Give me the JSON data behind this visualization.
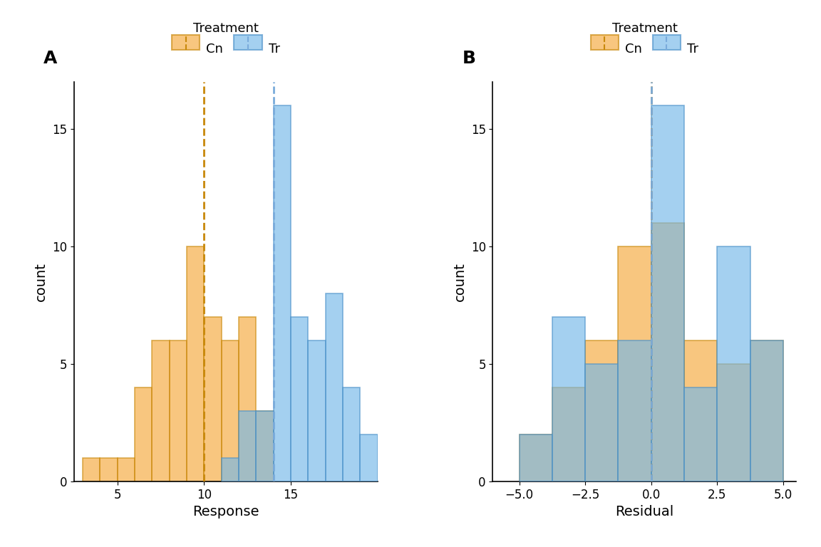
{
  "panel_A": {
    "cn_bin_edges": [
      3,
      4,
      5,
      6,
      7,
      8,
      9,
      10,
      11,
      12,
      13,
      14
    ],
    "cn_counts": [
      1,
      1,
      1,
      4,
      6,
      6,
      10,
      7,
      6,
      7,
      3
    ],
    "tr_bin_edges": [
      11,
      12,
      13,
      14,
      15,
      16,
      17,
      18,
      19,
      20
    ],
    "tr_counts": [
      1,
      3,
      3,
      16,
      7,
      6,
      8,
      4,
      2
    ],
    "cn_mean": 10.0,
    "tr_mean": 14.0,
    "xlabel": "Response",
    "ylabel": "count",
    "xlim": [
      2.5,
      20
    ],
    "ylim": [
      0,
      17
    ],
    "yticks": [
      0,
      5,
      10,
      15
    ],
    "xticks": [
      5,
      10,
      15
    ],
    "label": "A"
  },
  "panel_B": {
    "cn_bin_edges": [
      -5.0,
      -3.75,
      -2.5,
      -1.25,
      0.0,
      1.25,
      2.5,
      3.75,
      5.0
    ],
    "cn_counts": [
      2,
      4,
      6,
      10,
      11,
      6,
      5,
      6
    ],
    "tr_bin_edges": [
      -5.0,
      -3.75,
      -2.5,
      -1.25,
      0.0,
      1.25,
      2.5,
      3.75,
      5.0
    ],
    "tr_counts": [
      2,
      7,
      5,
      6,
      16,
      4,
      10,
      6
    ],
    "cn_mean": 0.0,
    "tr_mean": 0.0,
    "xlabel": "Residual",
    "ylabel": "count",
    "xlim": [
      -6.0,
      5.5
    ],
    "ylim": [
      0,
      17
    ],
    "yticks": [
      0,
      5,
      10,
      15
    ],
    "xticks": [
      -5.0,
      -2.5,
      0.0,
      2.5,
      5.0
    ],
    "label": "B"
  },
  "cn_color": "#F5A83A",
  "cn_edge_color": "#C8880A",
  "tr_color": "#74B8E8",
  "tr_edge_color": "#4A90C8",
  "cn_vline_color": "#C8880A",
  "tr_vline_color": "#7AABDB",
  "alpha": 0.65,
  "legend_title": "Treatment",
  "legend_cn": "Cn",
  "legend_tr": "Tr",
  "panel_label_fontsize": 18,
  "axis_label_fontsize": 14,
  "tick_fontsize": 12,
  "legend_fontsize": 13,
  "legend_title_fontsize": 13
}
